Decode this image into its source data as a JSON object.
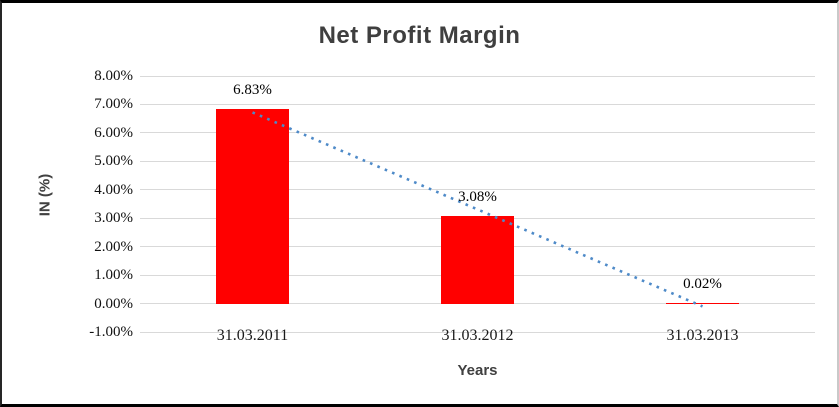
{
  "chart_data": {
    "type": "bar",
    "title": "Net Profit Margin",
    "xlabel": "Years",
    "ylabel": "IN (%)",
    "categories": [
      "31.03.2011",
      "31.03.2012",
      "31.03.2013"
    ],
    "values": [
      6.83,
      3.08,
      0.02
    ],
    "data_labels": [
      "6.83%",
      "3.08%",
      "0.02%"
    ],
    "ylim": [
      -1,
      8
    ],
    "ytick_labels": [
      "8.00%",
      "7.00%",
      "6.00%",
      "5.00%",
      "4.00%",
      "3.00%",
      "2.00%",
      "1.00%",
      "0.00%",
      "-1.00%"
    ],
    "grid": true,
    "legend": false,
    "bar_color": "#FF0000",
    "gridline_color": "#D9D9D9",
    "title_color": "#3F3F3F",
    "trendline": {
      "type": "linear",
      "style": "dotted",
      "color": "#4E8AC8",
      "start_pct": 6.72,
      "end_pct": -0.1
    }
  }
}
